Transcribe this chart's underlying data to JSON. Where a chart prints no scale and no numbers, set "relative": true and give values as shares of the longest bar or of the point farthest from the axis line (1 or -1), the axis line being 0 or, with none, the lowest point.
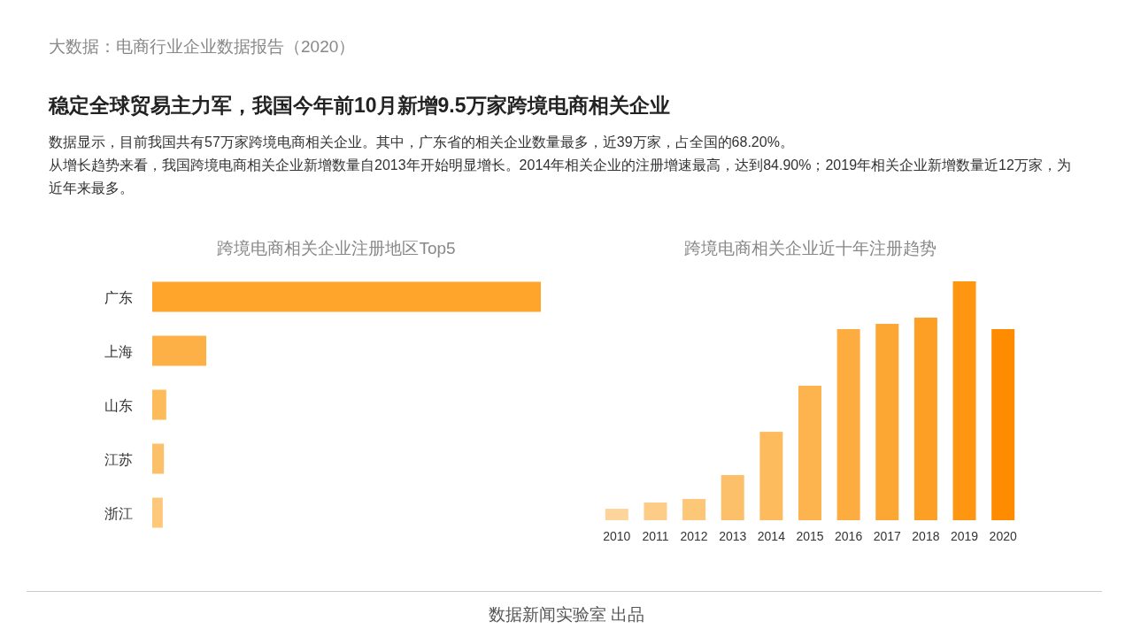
{
  "chart_data": [
    {
      "type": "other",
      "title": "稳定全球贸易主力军，我国今年前10月新增9.5万家跨境电商相关企业",
      "subtitle": "数据显示，目前我国共有57万家跨境电商相关企业。其中，广东省的相关企业数量最多，近39万家，占全国的68.20%。",
      "annotations": [
        "大数据：电商行业企业数据报告（2020）",
        "从增长趋势来看，我国跨境电商相关企业新增数量自2013年开始明显增长。2014年相关企业的注册增速最高，达到84.90%；2019年相关企业新增数量近12万家，为近年来最多。",
        "数据新闻实验室 出品"
      ]
    },
    {
      "type": "bar",
      "orientation": "horizontal",
      "relative": true,
      "title": "跨境电商相关企业注册地区Top5",
      "categories": [
        "广东",
        "上海",
        "山东",
        "江苏",
        "浙江"
      ],
      "values": [
        1,
        0.139,
        0.036,
        0.03,
        0.027
      ],
      "colors": [
        "#ffa52b",
        "#fdb045",
        "#fdbb5a",
        "#fdc06a",
        "#fec87b"
      ]
    },
    {
      "type": "bar",
      "relative": true,
      "title": "跨境电商相关企业近十年注册趋势",
      "categories": [
        "2010",
        "2011",
        "2012",
        "2013",
        "2014",
        "2015",
        "2016",
        "2017",
        "2018",
        "2019",
        "2020"
      ],
      "values": [
        0.048,
        0.074,
        0.089,
        0.189,
        0.37,
        0.563,
        0.8,
        0.822,
        0.848,
        1,
        0.8
      ],
      "colors": [
        "#fdd49a",
        "#fdcd88",
        "#fdc778",
        "#fdc06a",
        "#fdbb5e",
        "#fdb44e",
        "#fdad40",
        "#fca633",
        "#fd9f25",
        "#ff9612",
        "#ff8c00"
      ]
    }
  ]
}
